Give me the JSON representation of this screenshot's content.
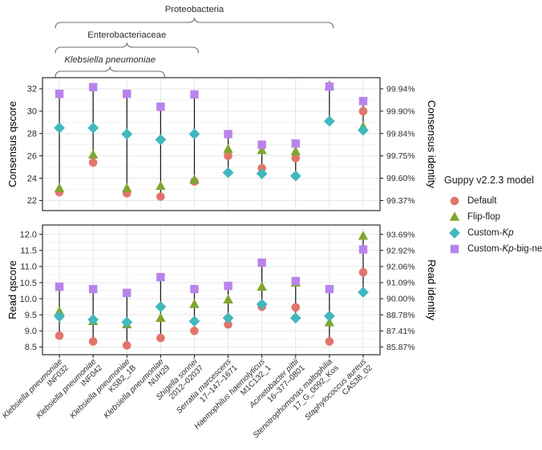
{
  "figure_label": "basecalling-accuracy-figure",
  "colors": {
    "default_model": "#E2756B",
    "flipflop_model": "#7FA62F",
    "custom_kp_model": "#41B7BE",
    "custom_kp_big_net_model": "#B983EB",
    "range_line": "#111111",
    "panel_border": "#1a1a1a",
    "grid_major": "#e6e6e6",
    "grid_minor": "#f1f1f1",
    "tick_text": "#2e2e2e",
    "brace": "#6e6e6e"
  },
  "taxonomy": {
    "braces": [
      {
        "label": "Proteobacteria",
        "italic": false,
        "start": 0,
        "end": 8
      },
      {
        "label": "Enterobacteriaceae",
        "italic": false,
        "start": 0,
        "end": 4
      },
      {
        "label": "Klebsiella pneumoniae",
        "italic": true,
        "start": 0,
        "end": 3
      }
    ]
  },
  "legend": {
    "title": "Guppy v2.2.3 model",
    "items": [
      {
        "id": "default",
        "label_prefix": "Default",
        "label_italic": "",
        "label_suffix": "",
        "marker": "circle",
        "color": "#E2756B"
      },
      {
        "id": "flip-flop",
        "label_prefix": "Flip-flop",
        "label_italic": "",
        "label_suffix": "",
        "marker": "triangle",
        "color": "#7FA62F"
      },
      {
        "id": "custom-kp",
        "label_prefix": "Custom-",
        "label_italic": "Kp",
        "label_suffix": "",
        "marker": "diamond",
        "color": "#41B7BE"
      },
      {
        "id": "custom-kp-big-net",
        "label_prefix": "Custom-",
        "label_italic": "Kp",
        "label_suffix": "-big-net",
        "marker": "square",
        "color": "#B983EB"
      }
    ]
  },
  "strains": [
    {
      "species": "Klebsiella pneumoniae",
      "strain": "INF032"
    },
    {
      "species": "Klebsiella pneumoniae",
      "strain": "INF042"
    },
    {
      "species": "Klebsiella pneumoniae",
      "strain": "KSB2_1B"
    },
    {
      "species": "Klebsiella pneumoniae",
      "strain": "NUH29"
    },
    {
      "species": "Shigella sonnei",
      "strain": "2012–02037"
    },
    {
      "species": "Serratia marcescens",
      "strain": "17–147–1671"
    },
    {
      "species": "Haemophilus haemolyticus",
      "strain": "M1C132_1"
    },
    {
      "species": "Acinetobacter pittii",
      "strain": "16–377–0801"
    },
    {
      "species": "Stenotrophomonas maltophilia",
      "strain": "17_G_0092_Kos"
    },
    {
      "species": "Staphylococcus aureus",
      "strain": "CAS38_02"
    }
  ],
  "chart_data": [
    {
      "type": "scatter",
      "subtype": "dot-range",
      "panel": "consensus",
      "ylabel_left": "Consensus qscore",
      "ylabel_right": "Consensus identity",
      "ylim": [
        21.1,
        33.0
      ],
      "yticks": [
        22,
        24,
        26,
        28,
        30,
        32
      ],
      "yticks_right": [
        "99.37%",
        "99.60%",
        "99.75%",
        "99.84%",
        "99.90%",
        "99.94%"
      ],
      "grid": true,
      "categories": [
        "Klebsiella pneumoniae INF032",
        "Klebsiella pneumoniae INF042",
        "Klebsiella pneumoniae KSB2_1B",
        "Klebsiella pneumoniae NUH29",
        "Shigella sonnei 2012–02037",
        "Serratia marcescens 17–147–1671",
        "Haemophilus haemolyticus M1C132_1",
        "Acinetobacter pittii 16–377–0801",
        "Stenotrophomonas maltophilia 17_G_0092_Kos",
        "Staphylococcus aureus CAS38_02"
      ],
      "series": [
        {
          "name": "Default",
          "marker": "circle",
          "color": "#E2756B",
          "values": [
            22.75,
            25.4,
            22.65,
            22.35,
            23.7,
            26.0,
            24.9,
            25.8,
            null,
            30.0
          ]
        },
        {
          "name": "Flip-flop",
          "marker": "triangle",
          "color": "#7FA62F",
          "values": [
            23.1,
            26.1,
            23.1,
            23.3,
            23.85,
            26.6,
            26.5,
            26.4,
            32.3,
            28.6
          ]
        },
        {
          "name": "Custom-Kp",
          "marker": "diamond",
          "color": "#41B7BE",
          "values": [
            28.5,
            28.5,
            27.95,
            27.45,
            27.95,
            24.5,
            24.4,
            24.2,
            29.1,
            28.3
          ]
        },
        {
          "name": "Custom-Kp-big-net",
          "marker": "square",
          "color": "#B983EB",
          "values": [
            31.55,
            32.15,
            31.55,
            30.4,
            31.5,
            27.95,
            27.0,
            27.1,
            32.2,
            30.9
          ]
        }
      ]
    },
    {
      "type": "scatter",
      "subtype": "dot-range",
      "panel": "read",
      "ylabel_left": "Read qscore",
      "ylabel_right": "Read identity",
      "ylim": [
        8.26,
        12.29
      ],
      "yticks": [
        8.5,
        9.0,
        9.5,
        10.0,
        10.5,
        11.0,
        11.5,
        12.0
      ],
      "yticks_right": [
        "85.87%",
        "87.41%",
        "88.78%",
        "90.00%",
        "91.09%",
        "92.06%",
        "92.92%",
        "93.69%"
      ],
      "grid": true,
      "categories": [
        "Klebsiella pneumoniae INF032",
        "Klebsiella pneumoniae INF042",
        "Klebsiella pneumoniae KSB2_1B",
        "Klebsiella pneumoniae NUH29",
        "Shigella sonnei 2012–02037",
        "Serratia marcescens 17–147–1671",
        "Haemophilus haemolyticus M1C132_1",
        "Acinetobacter pittii 16–377–0801",
        "Stenotrophomonas maltophilia 17_G_0092_Kos",
        "Staphylococcus aureus CAS38_02"
      ],
      "series": [
        {
          "name": "Default",
          "marker": "circle",
          "color": "#E2756B",
          "values": [
            8.85,
            8.67,
            8.55,
            8.78,
            9.0,
            9.2,
            9.75,
            9.73,
            8.67,
            10.82
          ]
        },
        {
          "name": "Flip-flop",
          "marker": "triangle",
          "color": "#7FA62F",
          "values": [
            9.6,
            9.3,
            9.2,
            9.4,
            9.83,
            9.97,
            10.37,
            10.5,
            9.26,
            11.95
          ]
        },
        {
          "name": "Custom-Kp",
          "marker": "diamond",
          "color": "#41B7BE",
          "values": [
            9.45,
            9.35,
            9.27,
            9.75,
            9.3,
            9.4,
            9.83,
            9.4,
            9.46,
            10.2
          ]
        },
        {
          "name": "Custom-Kp-big-net",
          "marker": "square",
          "color": "#B983EB",
          "values": [
            10.37,
            10.3,
            10.18,
            10.67,
            10.3,
            10.4,
            11.12,
            10.55,
            10.3,
            11.53
          ]
        }
      ]
    }
  ]
}
